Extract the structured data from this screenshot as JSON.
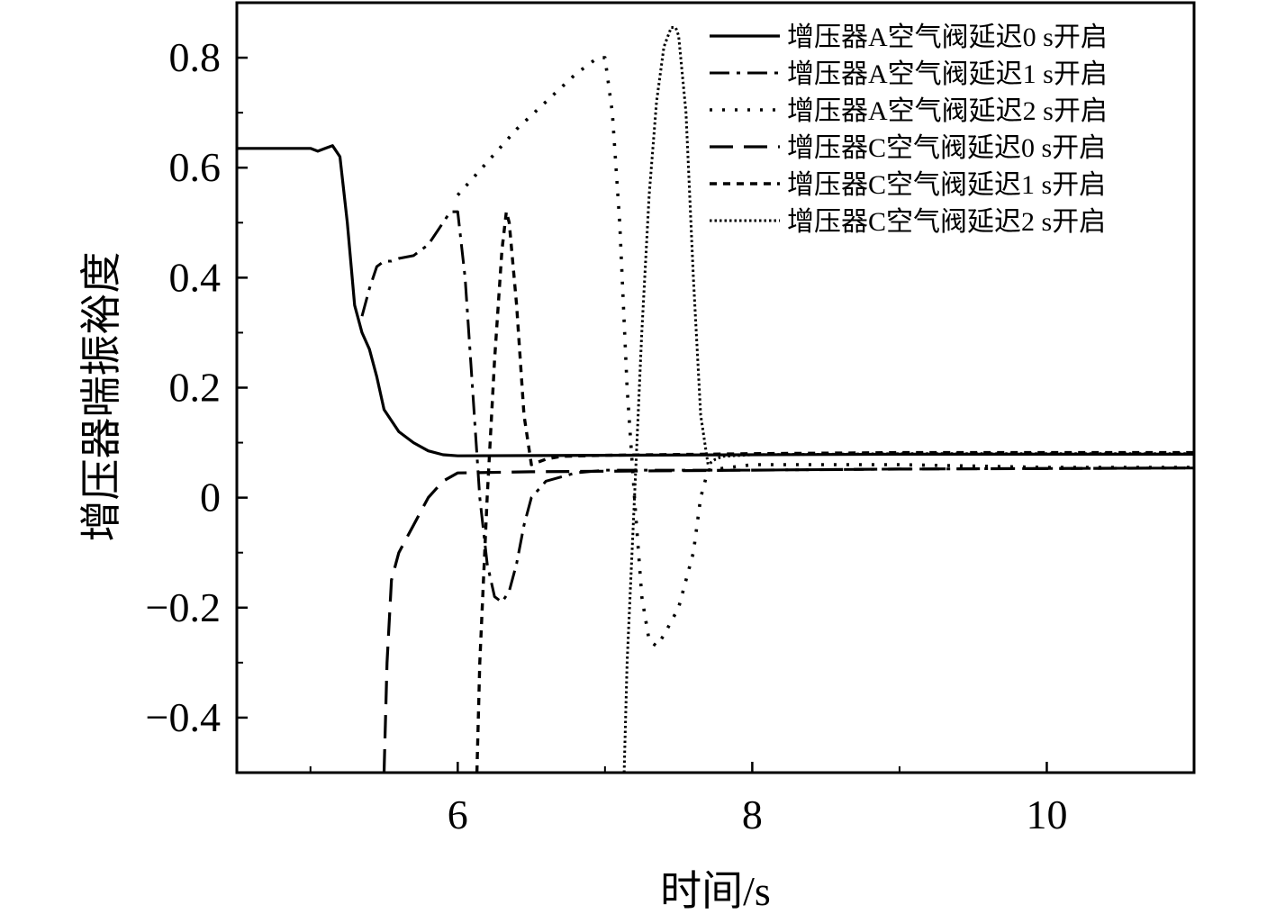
{
  "chart_data": {
    "type": "line",
    "title": "",
    "xlabel": "时间/s",
    "ylabel": "增压器喘振裕度",
    "xlim": [
      4.5,
      11.0
    ],
    "ylim": [
      -0.5,
      0.9
    ],
    "xticks": [
      6,
      8,
      10
    ],
    "xtick_labels": [
      "6",
      "8",
      "10"
    ],
    "yticks": [
      -0.4,
      -0.2,
      0,
      0.2,
      0.4,
      0.6,
      0.8
    ],
    "ytick_labels": [
      "−0.4",
      "−0.2",
      "0",
      "0.2",
      "0.4",
      "0.6",
      "0.8"
    ],
    "grid": false,
    "legend_position": "top-right",
    "series": [
      {
        "name": "增压器A空气阀延迟0 s开启",
        "dash": "solid",
        "x": [
          4.5,
          5.0,
          5.05,
          5.1,
          5.15,
          5.2,
          5.25,
          5.3,
          5.35,
          5.4,
          5.45,
          5.5,
          5.55,
          5.6,
          5.7,
          5.8,
          5.9,
          6.0,
          7.0,
          8.0,
          9.0,
          10.0,
          11.0
        ],
        "y": [
          0.635,
          0.635,
          0.63,
          0.635,
          0.64,
          0.62,
          0.5,
          0.35,
          0.3,
          0.27,
          0.22,
          0.16,
          0.14,
          0.12,
          0.1,
          0.085,
          0.078,
          0.076,
          0.077,
          0.078,
          0.079,
          0.079,
          0.079
        ]
      },
      {
        "name": "增压器A空气阀延迟1 s开启",
        "dash": "dashdot",
        "x": [
          5.35,
          5.4,
          5.45,
          5.5,
          5.55,
          5.6,
          5.7,
          5.8,
          5.9,
          5.95,
          6.0,
          6.05,
          6.1,
          6.15,
          6.2,
          6.25,
          6.3,
          6.35,
          6.4,
          6.45,
          6.5,
          6.6,
          6.8,
          7.0,
          8.0,
          9.0,
          10.0,
          11.0
        ],
        "y": [
          0.33,
          0.38,
          0.42,
          0.43,
          0.43,
          0.435,
          0.44,
          0.46,
          0.5,
          0.52,
          0.52,
          0.4,
          0.2,
          0.0,
          -0.12,
          -0.18,
          -0.19,
          -0.17,
          -0.12,
          -0.05,
          0.0,
          0.03,
          0.045,
          0.05,
          0.05,
          0.052,
          0.053,
          0.054
        ]
      },
      {
        "name": "增压器A空气阀延迟2 s开启",
        "dash": "dotted",
        "x": [
          6.0,
          6.2,
          6.4,
          6.6,
          6.8,
          6.95,
          7.0,
          7.05,
          7.1,
          7.15,
          7.2,
          7.25,
          7.3,
          7.35,
          7.4,
          7.5,
          7.6,
          7.65,
          7.7,
          8.0,
          9.0,
          10.0,
          11.0
        ],
        "y": [
          0.55,
          0.61,
          0.67,
          0.72,
          0.77,
          0.8,
          0.8,
          0.7,
          0.5,
          0.2,
          0.0,
          -0.18,
          -0.26,
          -0.27,
          -0.25,
          -0.2,
          -0.1,
          0.0,
          0.05,
          0.06,
          0.06,
          0.055,
          0.055
        ]
      },
      {
        "name": "增压器C空气阀延迟0 s开启",
        "dash": "longdash",
        "x": [
          5.5,
          5.52,
          5.55,
          5.58,
          5.6,
          5.7,
          5.8,
          5.9,
          6.0,
          6.5,
          7.0,
          8.0,
          9.0,
          10.0,
          11.0
        ],
        "y": [
          -0.5,
          -0.3,
          -0.15,
          -0.12,
          -0.1,
          -0.05,
          0.0,
          0.03,
          0.045,
          0.047,
          0.048,
          0.05,
          0.052,
          0.053,
          0.054
        ]
      },
      {
        "name": "增压器C空气阀延迟1 s开启",
        "dash": "shortdash",
        "x": [
          6.13,
          6.15,
          6.2,
          6.25,
          6.3,
          6.33,
          6.35,
          6.4,
          6.45,
          6.5,
          6.55,
          6.6,
          6.7,
          7.0,
          8.0,
          9.0,
          10.0,
          11.0
        ],
        "y": [
          -0.5,
          -0.3,
          0.0,
          0.25,
          0.45,
          0.52,
          0.5,
          0.35,
          0.15,
          0.06,
          0.065,
          0.07,
          0.075,
          0.077,
          0.08,
          0.082,
          0.082,
          0.082
        ]
      },
      {
        "name": "增压器C空气阀延迟2 s开启",
        "dash": "finedot",
        "x": [
          7.13,
          7.15,
          7.2,
          7.25,
          7.3,
          7.35,
          7.4,
          7.45,
          7.48,
          7.5,
          7.55,
          7.6,
          7.65,
          7.7,
          7.75,
          7.8,
          8.0,
          9.0,
          10.0,
          11.0
        ],
        "y": [
          -0.5,
          -0.3,
          0.0,
          0.3,
          0.55,
          0.72,
          0.82,
          0.855,
          0.855,
          0.84,
          0.7,
          0.4,
          0.15,
          0.06,
          0.07,
          0.075,
          0.078,
          0.08,
          0.08,
          0.08
        ]
      }
    ]
  }
}
